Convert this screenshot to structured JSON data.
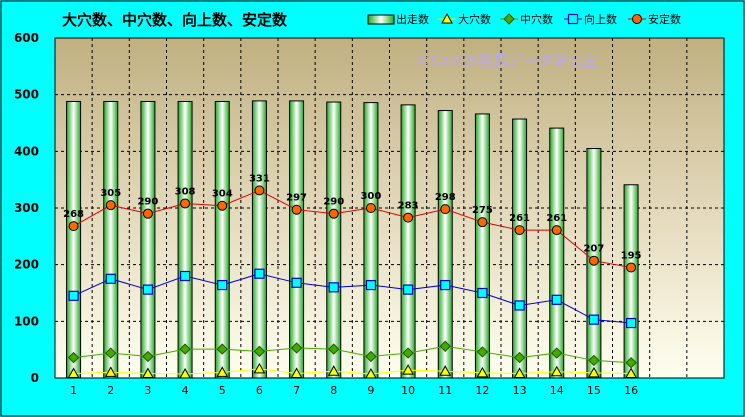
{
  "chart_data": {
    "type": "bar",
    "title": "大穴数、中穴数、向上数、安定数",
    "watermark": "©Caniの競馬データ研究室",
    "categories": [
      "1",
      "2",
      "3",
      "4",
      "5",
      "6",
      "7",
      "8",
      "9",
      "10",
      "11",
      "12",
      "13",
      "14",
      "15",
      "16"
    ],
    "ylim": [
      0,
      600
    ],
    "yticks": [
      "0",
      "100",
      "200",
      "300",
      "400",
      "500",
      "600"
    ],
    "grid": true,
    "legend_position": "top",
    "series": [
      {
        "name": "出走数",
        "kind": "bar",
        "color": "#33cc33",
        "values": [
          488,
          488,
          488,
          488,
          488,
          489,
          489,
          487,
          486,
          482,
          472,
          466,
          457,
          441,
          405,
          341
        ]
      },
      {
        "name": "大穴数",
        "kind": "line",
        "color": "#ffff00",
        "marker": "triangle",
        "values": [
          8,
          10,
          8,
          7,
          10,
          16,
          8,
          12,
          7,
          14,
          12,
          9,
          8,
          11,
          9,
          8
        ]
      },
      {
        "name": "中穴数",
        "kind": "line",
        "color": "#44aa00",
        "marker": "diamond",
        "values": [
          36,
          44,
          38,
          51,
          51,
          47,
          53,
          51,
          38,
          44,
          56,
          46,
          36,
          44,
          31,
          27
        ]
      },
      {
        "name": "向上数",
        "kind": "line",
        "color": "#0000cc",
        "marker": "square",
        "values": [
          145,
          175,
          156,
          180,
          164,
          184,
          168,
          160,
          164,
          156,
          164,
          150,
          128,
          138,
          103,
          97
        ]
      },
      {
        "name": "安定数",
        "kind": "line",
        "color": "#ff6600",
        "marker": "circle",
        "values": [
          268,
          305,
          290,
          308,
          304,
          331,
          297,
          290,
          300,
          283,
          298,
          275,
          261,
          261,
          207,
          195
        ],
        "labels": [
          "268",
          "305",
          "290",
          "308",
          "304",
          "331",
          "297",
          "290",
          "300",
          "283",
          "298",
          "275",
          "261",
          "261",
          "207",
          "195"
        ]
      }
    ]
  }
}
